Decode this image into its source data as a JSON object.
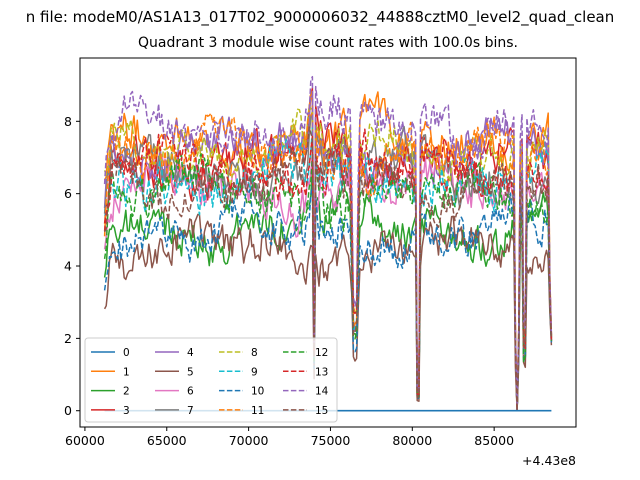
{
  "figure": {
    "suptitle": "n file: modeM0/AS1A13_017T02_9000006032_44888cztM0_level2_quad_clean",
    "title": "Quadrant 3 module wise count rates with 100.0s bins."
  },
  "chart_data": {
    "type": "line",
    "title": "Quadrant 3 module wise count rates with 100.0s bins.",
    "xlabel": "",
    "ylabel": "",
    "x_offset_label": "+4.43e8",
    "x_range": [
      61200,
      88500
    ],
    "xlim": [
      59700,
      90000
    ],
    "ylim": [
      -0.45,
      9.75
    ],
    "x_ticks": [
      60000,
      65000,
      70000,
      75000,
      80000,
      85000
    ],
    "x_tick_labels": [
      "60000",
      "65000",
      "70000",
      "75000",
      "80000",
      "85000"
    ],
    "y_ticks": [
      0,
      2,
      4,
      6,
      8
    ],
    "y_tick_labels": [
      "0",
      "2",
      "4",
      "6",
      "8"
    ],
    "grid": false,
    "legend_placement": "lower-left",
    "gaps": [
      {
        "center": 76500,
        "width": 260,
        "depth": 0.65
      },
      {
        "center": 80350,
        "width": 120,
        "depth": 1.0
      },
      {
        "center": 86400,
        "width": 180,
        "depth": 1.0
      },
      {
        "center": 74000,
        "width": 100,
        "depth": 0.8
      },
      {
        "center": 86850,
        "width": 100,
        "depth": 0.9
      },
      {
        "center": 88500,
        "width": 80,
        "depth": 0.7
      }
    ],
    "series": [
      {
        "name": "0",
        "color": "#1f77b4",
        "dash": "solid",
        "level": 0.0,
        "flat": true
      },
      {
        "name": "1",
        "color": "#ff7f0e",
        "dash": "solid",
        "level": 7.5
      },
      {
        "name": "2",
        "color": "#2ca02c",
        "dash": "solid",
        "level": 5.1
      },
      {
        "name": "3",
        "color": "#d62728",
        "dash": "solid",
        "level": 6.9
      },
      {
        "name": "4",
        "color": "#9467bd",
        "dash": "solid",
        "level": 7.2
      },
      {
        "name": "5",
        "color": "#8c564b",
        "dash": "solid",
        "level": 4.4
      },
      {
        "name": "6",
        "color": "#e377c2",
        "dash": "solid",
        "level": 6.1
      },
      {
        "name": "7",
        "color": "#7f7f7f",
        "dash": "solid",
        "level": 6.6
      },
      {
        "name": "8",
        "color": "#bcbd22",
        "dash": "dashed",
        "level": 7.3
      },
      {
        "name": "9",
        "color": "#17becf",
        "dash": "dashed",
        "level": 6.4
      },
      {
        "name": "10",
        "color": "#1f77b4",
        "dash": "dashed",
        "level": 4.9
      },
      {
        "name": "11",
        "color": "#ff7f0e",
        "dash": "dashed",
        "level": 7.1
      },
      {
        "name": "12",
        "color": "#2ca02c",
        "dash": "dashed",
        "level": 6.0
      },
      {
        "name": "13",
        "color": "#d62728",
        "dash": "dashed",
        "level": 6.7
      },
      {
        "name": "14",
        "color": "#9467bd",
        "dash": "dashed",
        "level": 7.9
      },
      {
        "name": "15",
        "color": "#8c564b",
        "dash": "dashed",
        "level": 6.3
      }
    ]
  }
}
